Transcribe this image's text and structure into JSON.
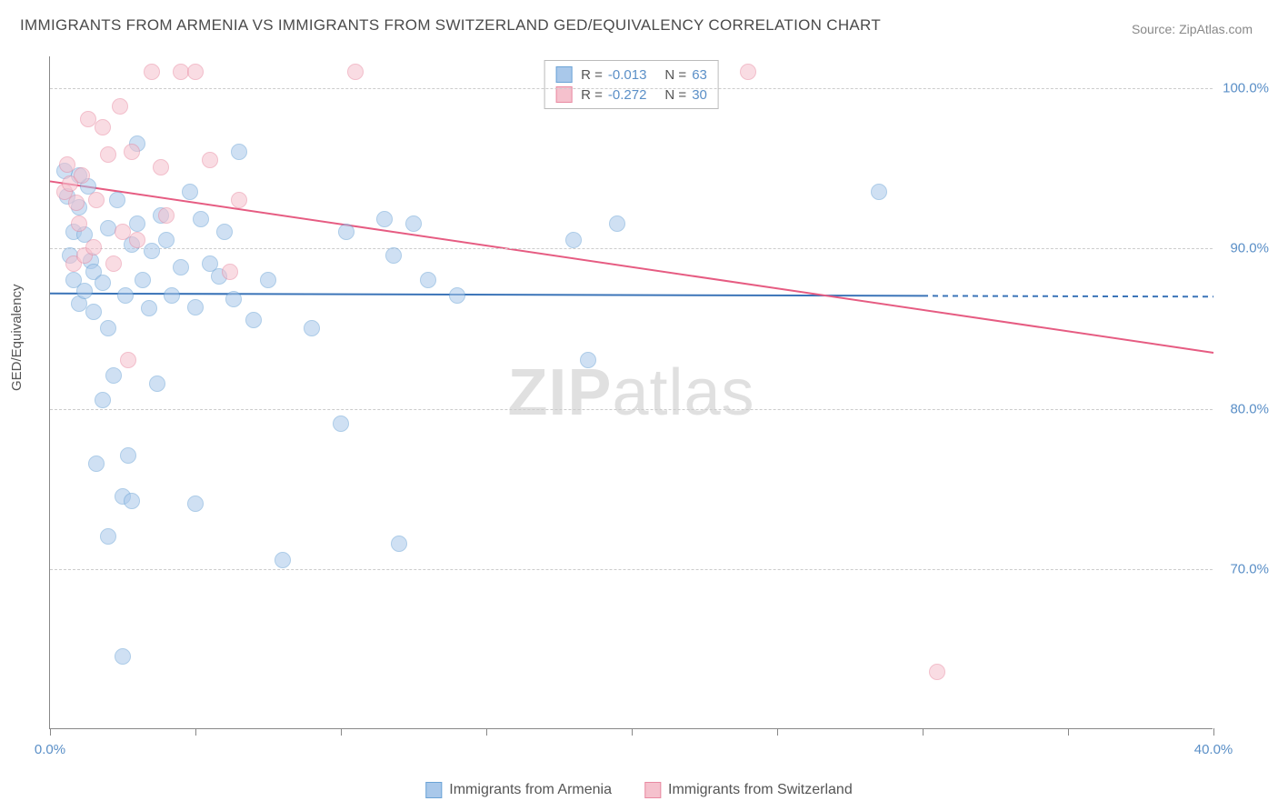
{
  "title": "IMMIGRANTS FROM ARMENIA VS IMMIGRANTS FROM SWITZERLAND GED/EQUIVALENCY CORRELATION CHART",
  "source": "Source: ZipAtlas.com",
  "ylabel": "GED/Equivalency",
  "watermark": {
    "bold": "ZIP",
    "rest": "atlas"
  },
  "chart": {
    "type": "scatter",
    "background_color": "#ffffff",
    "grid_color": "#cccccc",
    "axis_color": "#888888",
    "tick_label_color": "#5a8fc7",
    "xlim": [
      0,
      40
    ],
    "ylim": [
      60,
      102
    ],
    "y_ticks": [
      70,
      80,
      90,
      100
    ],
    "y_tick_labels": [
      "70.0%",
      "80.0%",
      "90.0%",
      "100.0%"
    ],
    "x_ticks": [
      0,
      5,
      10,
      15,
      20,
      25,
      30,
      35,
      40
    ],
    "x_tick_labels": [
      "0.0%",
      "",
      "",
      "",
      "",
      "",
      "",
      "",
      "40.0%"
    ],
    "marker_radius": 9,
    "marker_opacity": 0.55,
    "line_width": 2,
    "series": [
      {
        "name": "Immigrants from Armenia",
        "fill_color": "#a9c8ea",
        "stroke_color": "#6ba3d6",
        "line_color": "#3b74b8",
        "r_value": "-0.013",
        "n_value": "63",
        "trend": {
          "x1": 0,
          "y1": 87.2,
          "x2": 40,
          "y2": 87.0
        },
        "trend_solid_until_x": 30,
        "points": [
          [
            0.5,
            94.8
          ],
          [
            0.6,
            93.2
          ],
          [
            0.7,
            89.5
          ],
          [
            0.8,
            88.0
          ],
          [
            0.8,
            91.0
          ],
          [
            1.0,
            92.5
          ],
          [
            1.0,
            86.5
          ],
          [
            1.2,
            90.8
          ],
          [
            1.2,
            87.3
          ],
          [
            1.3,
            93.8
          ],
          [
            1.4,
            89.2
          ],
          [
            1.5,
            86.0
          ],
          [
            1.5,
            88.5
          ],
          [
            1.6,
            76.5
          ],
          [
            1.8,
            80.5
          ],
          [
            1.8,
            87.8
          ],
          [
            2.0,
            91.2
          ],
          [
            2.0,
            85.0
          ],
          [
            2.0,
            72.0
          ],
          [
            2.2,
            82.0
          ],
          [
            2.3,
            93.0
          ],
          [
            2.5,
            64.5
          ],
          [
            2.5,
            74.5
          ],
          [
            2.6,
            87.0
          ],
          [
            2.7,
            77.0
          ],
          [
            2.8,
            90.2
          ],
          [
            2.8,
            74.2
          ],
          [
            3.0,
            96.5
          ],
          [
            3.0,
            91.5
          ],
          [
            3.2,
            88.0
          ],
          [
            3.4,
            86.2
          ],
          [
            3.5,
            89.8
          ],
          [
            3.7,
            81.5
          ],
          [
            3.8,
            92.0
          ],
          [
            4.0,
            90.5
          ],
          [
            4.2,
            87.0
          ],
          [
            4.5,
            88.8
          ],
          [
            4.8,
            93.5
          ],
          [
            5.0,
            74.0
          ],
          [
            5.0,
            86.3
          ],
          [
            5.2,
            91.8
          ],
          [
            5.5,
            89.0
          ],
          [
            5.8,
            88.2
          ],
          [
            6.0,
            91.0
          ],
          [
            6.3,
            86.8
          ],
          [
            6.5,
            96.0
          ],
          [
            7.0,
            85.5
          ],
          [
            7.5,
            88.0
          ],
          [
            8.0,
            70.5
          ],
          [
            9.0,
            85.0
          ],
          [
            10.0,
            79.0
          ],
          [
            10.2,
            91.0
          ],
          [
            11.5,
            91.8
          ],
          [
            11.8,
            89.5
          ],
          [
            12.0,
            71.5
          ],
          [
            12.5,
            91.5
          ],
          [
            13.0,
            88.0
          ],
          [
            14.0,
            87.0
          ],
          [
            18.0,
            90.5
          ],
          [
            18.5,
            83.0
          ],
          [
            19.5,
            91.5
          ],
          [
            28.5,
            93.5
          ],
          [
            1.0,
            94.5
          ]
        ]
      },
      {
        "name": "Immigrants from Switzerland",
        "fill_color": "#f5c1cd",
        "stroke_color": "#e98aa2",
        "line_color": "#e65c82",
        "r_value": "-0.272",
        "n_value": "30",
        "trend": {
          "x1": 0,
          "y1": 94.2,
          "x2": 40,
          "y2": 83.5
        },
        "trend_solid_until_x": 40,
        "points": [
          [
            0.5,
            93.5
          ],
          [
            0.6,
            95.2
          ],
          [
            0.7,
            94.0
          ],
          [
            0.8,
            89.0
          ],
          [
            0.9,
            92.8
          ],
          [
            1.0,
            91.5
          ],
          [
            1.1,
            94.5
          ],
          [
            1.2,
            89.5
          ],
          [
            1.3,
            98.0
          ],
          [
            1.5,
            90.0
          ],
          [
            1.6,
            93.0
          ],
          [
            1.8,
            97.5
          ],
          [
            2.0,
            95.8
          ],
          [
            2.2,
            89.0
          ],
          [
            2.4,
            98.8
          ],
          [
            2.5,
            91.0
          ],
          [
            2.7,
            83.0
          ],
          [
            2.8,
            96.0
          ],
          [
            3.0,
            90.5
          ],
          [
            3.5,
            101.0
          ],
          [
            3.8,
            95.0
          ],
          [
            4.0,
            92.0
          ],
          [
            4.5,
            101.0
          ],
          [
            5.0,
            101.0
          ],
          [
            5.5,
            95.5
          ],
          [
            6.2,
            88.5
          ],
          [
            6.5,
            93.0
          ],
          [
            10.5,
            101.0
          ],
          [
            24.0,
            101.0
          ],
          [
            30.5,
            63.5
          ]
        ]
      }
    ]
  },
  "legend_bottom": [
    {
      "label": "Immigrants from Armenia",
      "fill": "#a9c8ea",
      "stroke": "#6ba3d6"
    },
    {
      "label": "Immigrants from Switzerland",
      "fill": "#f5c1cd",
      "stroke": "#e98aa2"
    }
  ]
}
